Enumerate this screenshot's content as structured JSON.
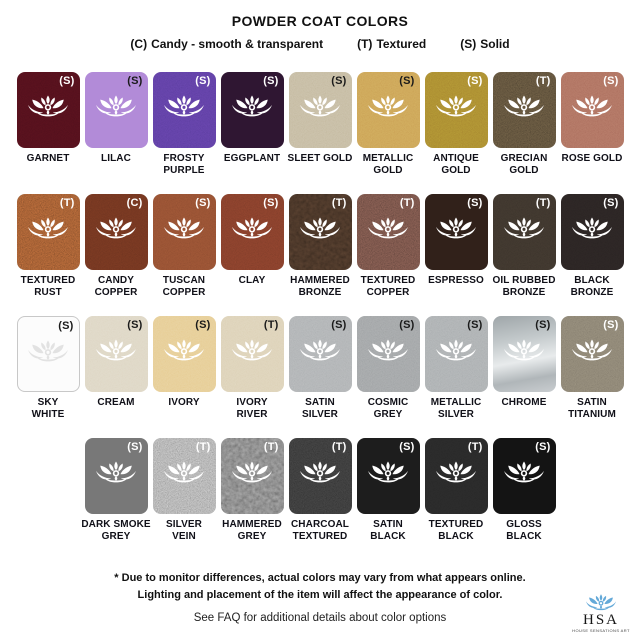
{
  "title": "POWDER COAT COLORS",
  "legend": [
    {
      "code": "(C)",
      "label": "Candy - smooth & transparent"
    },
    {
      "code": "(T)",
      "label": "Textured"
    },
    {
      "code": "(S)",
      "label": "Solid"
    }
  ],
  "rows": [
    {
      "swatches": [
        {
          "name": [
            "GARNET"
          ],
          "code": "(S)",
          "color": "#4e0f1a",
          "badge_text_color": "#ffffff",
          "texture": "grain"
        },
        {
          "name": [
            "LILAC"
          ],
          "code": "(S)",
          "color": "#b28bd8",
          "badge_text_color": "#1a1a1a",
          "texture": "none"
        },
        {
          "name": [
            "FROSTY",
            "PURPLE"
          ],
          "code": "(S)",
          "color": "#5a3c9e",
          "badge_text_color": "#ffffff",
          "texture": "grain"
        },
        {
          "name": [
            "EGGPLANT"
          ],
          "code": "(S)",
          "color": "#2f1632",
          "badge_text_color": "#ffffff",
          "texture": "none"
        },
        {
          "name": [
            "SLEET GOLD"
          ],
          "code": "(S)",
          "color": "#c2b79c",
          "badge_text_color": "#1a1a1a",
          "texture": "grain"
        },
        {
          "name": [
            "METALLIC",
            "GOLD"
          ],
          "code": "(S)",
          "color": "#c99e52",
          "badge_text_color": "#1a1a1a",
          "texture": "grain"
        },
        {
          "name": [
            "ANTIQUE",
            "GOLD"
          ],
          "code": "(S)",
          "color": "#a5842e",
          "badge_text_color": "#ffffff",
          "texture": "grain"
        },
        {
          "name": [
            "GRECIAN",
            "GOLD"
          ],
          "code": "(T)",
          "color": "#4a3f2e",
          "badge_text_color": "#ffffff",
          "texture": "speckle"
        },
        {
          "name": [
            "ROSE GOLD"
          ],
          "code": "(S)",
          "color": "#a96b5b",
          "badge_text_color": "#ffffff",
          "texture": "grain"
        }
      ]
    },
    {
      "swatches": [
        {
          "name": [
            "TEXTURED",
            "RUST"
          ],
          "code": "(T)",
          "color": "#7b4827",
          "badge_text_color": "#ffffff",
          "texture": "speckle"
        },
        {
          "name": [
            "CANDY",
            "COPPER"
          ],
          "code": "(C)",
          "color": "#6b321e",
          "badge_text_color": "#ffffff",
          "texture": "grain"
        },
        {
          "name": [
            "TUSCAN",
            "COPPER"
          ],
          "code": "(S)",
          "color": "#8d4b2f",
          "badge_text_color": "#ffffff",
          "texture": "grain"
        },
        {
          "name": [
            "CLAY"
          ],
          "code": "(S)",
          "color": "#7d3b28",
          "badge_text_color": "#ffffff",
          "texture": "grain"
        },
        {
          "name": [
            "HAMMERED",
            "BRONZE"
          ],
          "code": "(T)",
          "color": "#3b2b20",
          "badge_text_color": "#ffffff",
          "texture": "hammered"
        },
        {
          "name": [
            "TEXTURED",
            "COPPER"
          ],
          "code": "(T)",
          "color": "#5c4038",
          "badge_text_color": "#ffffff",
          "texture": "speckle"
        },
        {
          "name": [
            "ESPRESSO"
          ],
          "code": "(S)",
          "color": "#31211a",
          "badge_text_color": "#ffffff",
          "texture": "none"
        },
        {
          "name": [
            "OIL RUBBED",
            "BRONZE"
          ],
          "code": "(T)",
          "color": "#3a322a",
          "badge_text_color": "#ffffff",
          "texture": "grain"
        },
        {
          "name": [
            "BLACK",
            "BRONZE"
          ],
          "code": "(S)",
          "color": "#282221",
          "badge_text_color": "#ffffff",
          "texture": "grain"
        }
      ]
    },
    {
      "swatches": [
        {
          "name": [
            "SKY",
            "WHITE"
          ],
          "code": "(S)",
          "color": "#fcfcfc",
          "badge_text_color": "#1a1a1a",
          "texture": "none",
          "lotus_color": "#e2e2e2",
          "border_color": "#c8c8c8"
        },
        {
          "name": [
            "CREAM"
          ],
          "code": "(S)",
          "color": "#dcd4c1",
          "badge_text_color": "#1a1a1a",
          "texture": "grain"
        },
        {
          "name": [
            "IVORY"
          ],
          "code": "(S)",
          "color": "#e5ca8e",
          "badge_text_color": "#1a1a1a",
          "texture": "grain"
        },
        {
          "name": [
            "IVORY",
            "RIVER"
          ],
          "code": "(T)",
          "color": "#dbcfb3",
          "badge_text_color": "#1a1a1a",
          "texture": "grain"
        },
        {
          "name": [
            "SATIN",
            "SILVER"
          ],
          "code": "(S)",
          "color": "#abaeb0",
          "badge_text_color": "#1a1a1a",
          "texture": "grain"
        },
        {
          "name": [
            "COSMIC",
            "GREY"
          ],
          "code": "(S)",
          "color": "#9c9fa1",
          "badge_text_color": "#1a1a1a",
          "texture": "grain"
        },
        {
          "name": [
            "METALLIC",
            "SILVER"
          ],
          "code": "(S)",
          "color": "#a7abad",
          "badge_text_color": "#1a1a1a",
          "texture": "grain"
        },
        {
          "name": [
            "CHROME"
          ],
          "code": "(S)",
          "color": "#bfc4c6",
          "badge_text_color": "#1a1a1a",
          "texture": "chrome"
        },
        {
          "name": [
            "SATIN",
            "TITANIUM"
          ],
          "code": "(S)",
          "color": "#837b6c",
          "badge_text_color": "#ffffff",
          "texture": "grain"
        }
      ]
    },
    {
      "swatches": [
        {
          "name": [
            "DARK SMOKE",
            "GREY"
          ],
          "code": "(S)",
          "color": "#787878",
          "badge_text_color": "#ffffff",
          "texture": "none"
        },
        {
          "name": [
            "SILVER",
            "VEIN"
          ],
          "code": "(T)",
          "color": "#8d8d8d",
          "badge_text_color": "#ffffff",
          "texture": "speckle"
        },
        {
          "name": [
            "HAMMERED",
            "GREY"
          ],
          "code": "(T)",
          "color": "#6f6f6f",
          "badge_text_color": "#ffffff",
          "texture": "hammered"
        },
        {
          "name": [
            "CHARCOAL",
            "TEXTURED"
          ],
          "code": "(T)",
          "color": "#2e2e2e",
          "badge_text_color": "#ffffff",
          "texture": "speckle"
        },
        {
          "name": [
            "SATIN",
            "BLACK"
          ],
          "code": "(S)",
          "color": "#1d1d1d",
          "badge_text_color": "#ffffff",
          "texture": "none"
        },
        {
          "name": [
            "TEXTURED",
            "BLACK"
          ],
          "code": "(T)",
          "color": "#262626",
          "badge_text_color": "#ffffff",
          "texture": "grain"
        },
        {
          "name": [
            "GLOSS",
            "BLACK"
          ],
          "code": "(S)",
          "color": "#141414",
          "badge_text_color": "#ffffff",
          "texture": "none"
        }
      ]
    }
  ],
  "footer": {
    "disclaimer_line1": "* Due to monitor differences, actual colors may vary from what appears online.",
    "disclaimer_line2": "Lighting and placement of the item will affect the appearance of color.",
    "faq_note": "See FAQ for additional details about color options"
  },
  "logo": {
    "acronym": "HSA",
    "name": "HOUSE SENSATIONS ART",
    "lotus_color": "#64a9d8"
  }
}
